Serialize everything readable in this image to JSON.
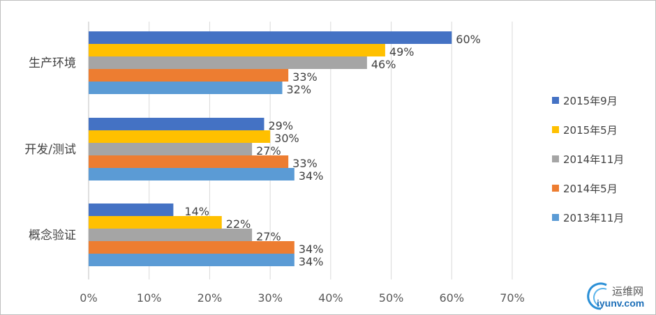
{
  "chart_data": {
    "type": "bar",
    "orientation": "horizontal",
    "title": "",
    "xlabel": "",
    "ylabel": "",
    "categories": [
      "生产环境",
      "开发/测试",
      "概念验证"
    ],
    "series": [
      {
        "name": "2015年9月",
        "color": "#4472C4",
        "values": [
          60,
          29,
          14
        ],
        "labels": [
          "60%",
          "29%",
          "14%"
        ]
      },
      {
        "name": "2015年5月",
        "color": "#FFC000",
        "values": [
          49,
          30,
          22
        ],
        "labels": [
          "49%",
          "30%",
          "22%"
        ]
      },
      {
        "name": "2014年11月",
        "color": "#A5A5A5",
        "values": [
          46,
          27,
          27
        ],
        "labels": [
          "46%",
          "27%",
          "27%"
        ]
      },
      {
        "name": "2014年5月",
        "color": "#ED7D31",
        "values": [
          33,
          33,
          34
        ],
        "labels": [
          "33%",
          "33%",
          "34%"
        ]
      },
      {
        "name": "2013年11月",
        "color": "#5B9BD5",
        "values": [
          32,
          34,
          34
        ],
        "labels": [
          "32%",
          "34%",
          "34%"
        ]
      }
    ],
    "xlim": [
      0,
      70
    ],
    "xticks": [
      0,
      10,
      20,
      30,
      40,
      50,
      60,
      70
    ],
    "xtick_labels": [
      "0%",
      "10%",
      "20%",
      "30%",
      "40%",
      "50%",
      "60%",
      "70%"
    ],
    "grid": true,
    "legend": "right"
  },
  "watermark": {
    "text_cn": "运维网",
    "text_en": "iyunv.com"
  }
}
